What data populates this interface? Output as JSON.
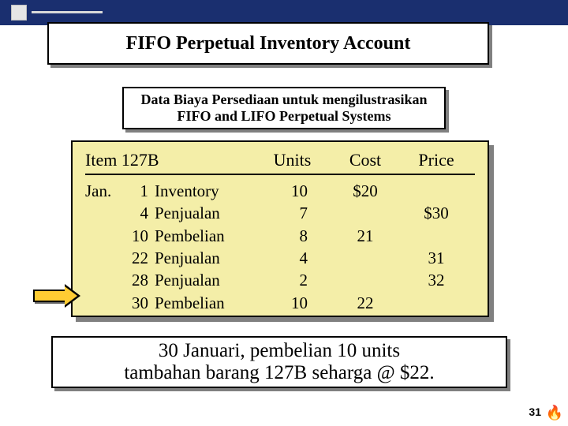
{
  "colors": {
    "header_bar": "#1a2f6f",
    "table_bg": "#f4eea8",
    "arrow_fill": "#ffcc33",
    "shadow": "#808080",
    "border": "#000000",
    "page_bg": "#ffffff"
  },
  "title": "FIFO Perpetual Inventory Account",
  "subtitle": {
    "line1": "Data Biaya Persediaan untuk mengilustrasikan",
    "line2": "FIFO and LIFO Perpetual Systems"
  },
  "table": {
    "header": {
      "item": "Item 127B",
      "units": "Units",
      "cost": "Cost",
      "price": "Price"
    },
    "month_label": "Jan.",
    "rows": [
      {
        "day": "1",
        "desc": "Inventory",
        "units": "10",
        "cost": "$20",
        "price": ""
      },
      {
        "day": "4",
        "desc": "Penjualan",
        "units": "7",
        "cost": "",
        "price": "$30"
      },
      {
        "day": "10",
        "desc": "Pembelian",
        "units": "8",
        "cost": "21",
        "price": ""
      },
      {
        "day": "22",
        "desc": "Penjualan",
        "units": "4",
        "cost": "",
        "price": "31"
      },
      {
        "day": "28",
        "desc": "Penjualan",
        "units": "2",
        "cost": "",
        "price": "32"
      },
      {
        "day": "30",
        "desc": "Pembelian",
        "units": "10",
        "cost": "22",
        "price": ""
      }
    ]
  },
  "footer": {
    "line1": "30 Januari, pembelian 10 units",
    "line2": "tambahan barang 127B seharga @ $22."
  },
  "page_number": "31"
}
